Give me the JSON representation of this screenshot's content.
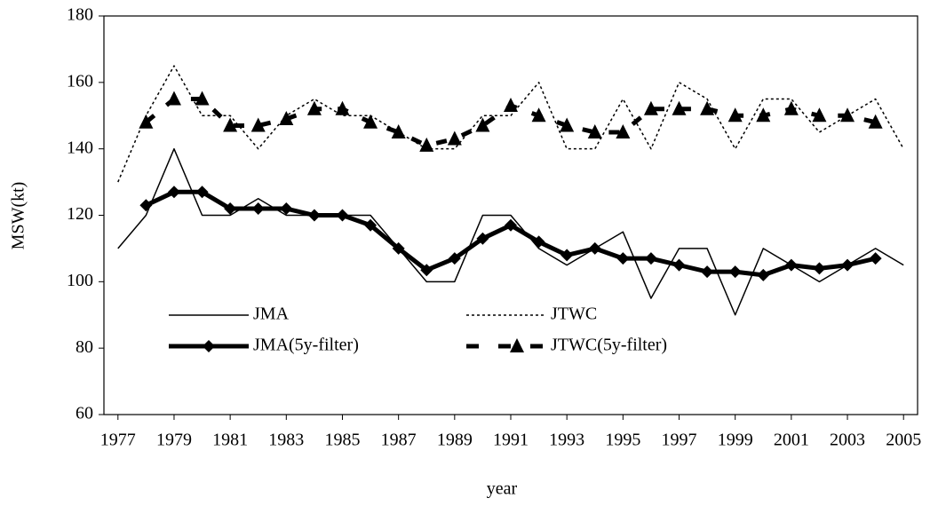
{
  "chart_data": {
    "type": "line",
    "x_label": "year",
    "y_label": "MSW(kt)",
    "x": [
      1977,
      1978,
      1979,
      1980,
      1981,
      1982,
      1983,
      1984,
      1985,
      1986,
      1987,
      1988,
      1989,
      1990,
      1991,
      1992,
      1993,
      1994,
      1995,
      1996,
      1997,
      1998,
      1999,
      2000,
      2001,
      2002,
      2003,
      2004,
      2005
    ],
    "xlim": [
      1976.5,
      2005.5
    ],
    "xticks": [
      1977,
      1979,
      1981,
      1983,
      1985,
      1987,
      1989,
      1991,
      1993,
      1995,
      1997,
      1999,
      2001,
      2003,
      2005
    ],
    "ylim": [
      60,
      180
    ],
    "yticks": [
      60,
      80,
      100,
      120,
      140,
      160,
      180
    ],
    "series": [
      {
        "name": "JMA",
        "color": "#000000",
        "values": [
          110,
          120,
          140,
          120,
          120,
          125,
          120,
          120,
          120,
          120,
          110,
          100,
          100,
          120,
          120,
          110,
          105,
          110,
          115,
          95,
          110,
          110,
          90,
          110,
          105,
          100,
          105,
          110,
          105
        ]
      },
      {
        "name": "JTWC",
        "color": "#000000",
        "values": [
          130,
          150,
          165,
          150,
          150,
          140,
          150,
          155,
          150,
          150,
          145,
          140,
          140,
          150,
          150,
          160,
          140,
          140,
          155,
          140,
          160,
          155,
          140,
          155,
          155,
          145,
          150,
          155,
          140
        ]
      },
      {
        "name": "JMA(5y-filter)",
        "color": "#000000",
        "values": [
          null,
          123,
          127,
          127,
          122,
          122,
          122,
          120,
          120,
          117,
          110,
          103.5,
          107,
          113,
          117,
          112,
          108,
          110,
          107,
          107,
          105,
          103,
          103,
          102,
          105,
          104,
          105,
          107,
          null
        ]
      },
      {
        "name": "JTWC(5y-filter)",
        "color": "#000000",
        "values": [
          null,
          148,
          155,
          155,
          147,
          147,
          149,
          152,
          152,
          148,
          145,
          141,
          143,
          147,
          153,
          150,
          147,
          145,
          145,
          152,
          152,
          152,
          150,
          150,
          152,
          150,
          150,
          148,
          null
        ]
      }
    ]
  }
}
